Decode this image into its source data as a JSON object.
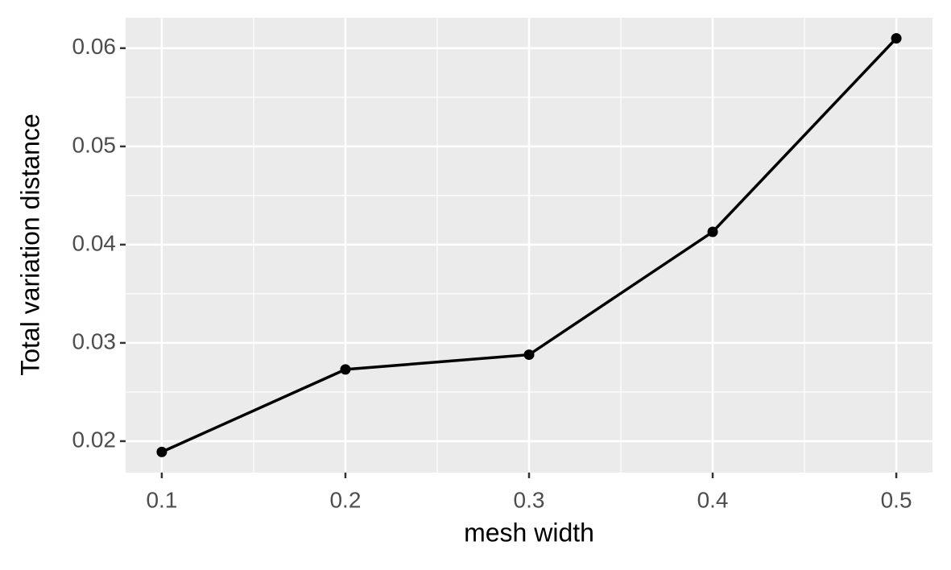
{
  "chart_data": {
    "type": "line",
    "x_label": "mesh width",
    "y_label": "Total variation distance",
    "x": [
      0.1,
      0.2,
      0.3,
      0.4,
      0.5
    ],
    "series": [
      {
        "color": "#000000",
        "values": [
          0.0189,
          0.0273,
          0.0288,
          0.0413,
          0.061
        ]
      }
    ],
    "xlim": [
      0.0803,
      0.5197
    ],
    "ylim": [
      0.0168,
      0.0631
    ],
    "xticks": [
      0.1,
      0.2,
      0.3,
      0.4,
      0.5
    ],
    "yticks": [
      0.02,
      0.03,
      0.04,
      0.05,
      0.06
    ],
    "grid": true,
    "minor_grid": true
  }
}
